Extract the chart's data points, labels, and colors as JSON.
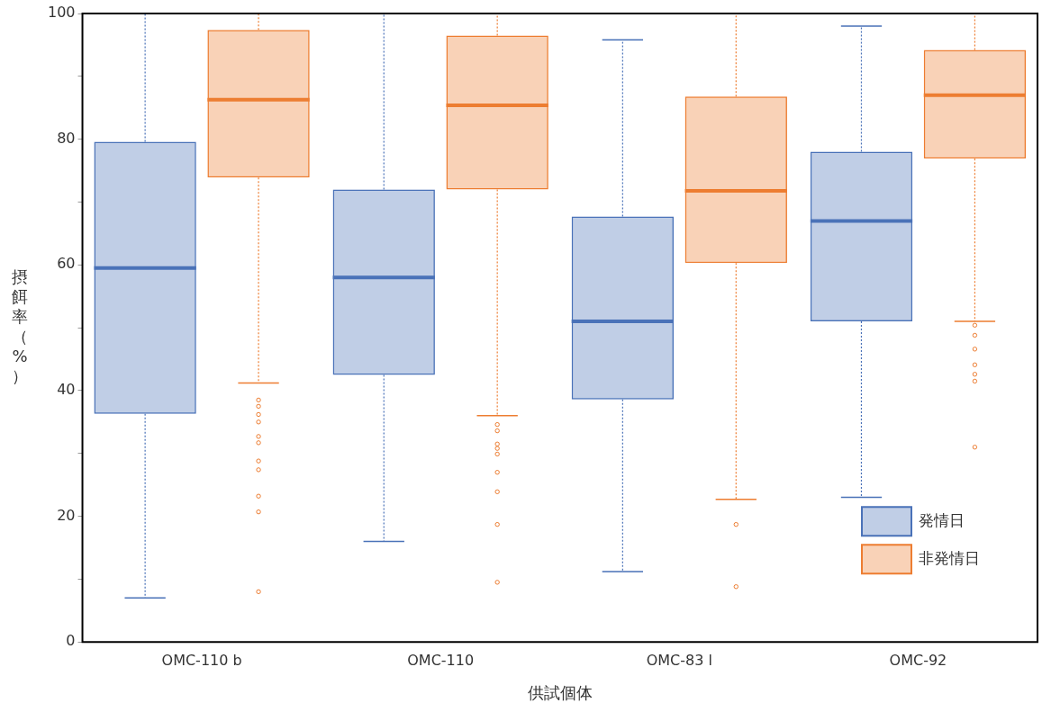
{
  "chart_data": {
    "type": "box",
    "xlabel": "供試個体",
    "ylabel": "摂餌率（%）",
    "categories": [
      "OMC-110 b",
      "OMC-110",
      "OMC-83 l",
      "OMC-92"
    ],
    "ylim": [
      0,
      100
    ],
    "yticks": [
      0,
      {
        "value": 10,
        "label": null
      },
      20,
      {
        "value": 30,
        "label": null
      },
      40,
      {
        "value": 50,
        "label": null
      },
      60,
      {
        "value": 70,
        "label": null
      },
      80,
      {
        "value": 90,
        "label": null
      },
      100
    ],
    "grid": false,
    "legend": "bottom right",
    "series": [
      {
        "name": "発情日",
        "color": "#4a72b8",
        "boxes": [
          {
            "low": 7,
            "q1": 36.3,
            "median": 59.5,
            "q3": 79.6,
            "high": 100
          },
          {
            "low": 16,
            "q1": 42.5,
            "median": 58,
            "q3": 72,
            "high": 100
          },
          {
            "low": 11.2,
            "q1": 38.6,
            "median": 51,
            "q3": 67.7,
            "high": 95.8
          },
          {
            "low": 23,
            "q1": 51,
            "median": 67,
            "q3": 78,
            "high": 98
          }
        ]
      },
      {
        "name": "非発情日",
        "color": "#ed7d31",
        "boxes": [
          {
            "low": 41.2,
            "q1": 73.9,
            "median": 86.3,
            "q3": 97.4,
            "high": 100,
            "outliers": [
              38.5,
              37.5,
              36.2,
              35,
              32.7,
              31.7,
              28.8,
              27.4,
              23.2,
              20.7,
              8
            ]
          },
          {
            "low": 36,
            "q1": 72,
            "median": 85.4,
            "q3": 96.5,
            "high": 100,
            "outliers": [
              34.6,
              33.6,
              31.5,
              30.8,
              29.9,
              27,
              23.9,
              18.7,
              9.5
            ]
          },
          {
            "low": 22.7,
            "q1": 60.3,
            "median": 71.8,
            "q3": 86.8,
            "high": 100,
            "outliers": [
              18.7,
              8.8
            ]
          },
          {
            "low": 51,
            "q1": 76.9,
            "median": 87,
            "q3": 94.2,
            "high": 100,
            "outliers": [
              50.4,
              48.8,
              46.6,
              44.1,
              42.6,
              41.5,
              31
            ]
          }
        ]
      }
    ]
  }
}
